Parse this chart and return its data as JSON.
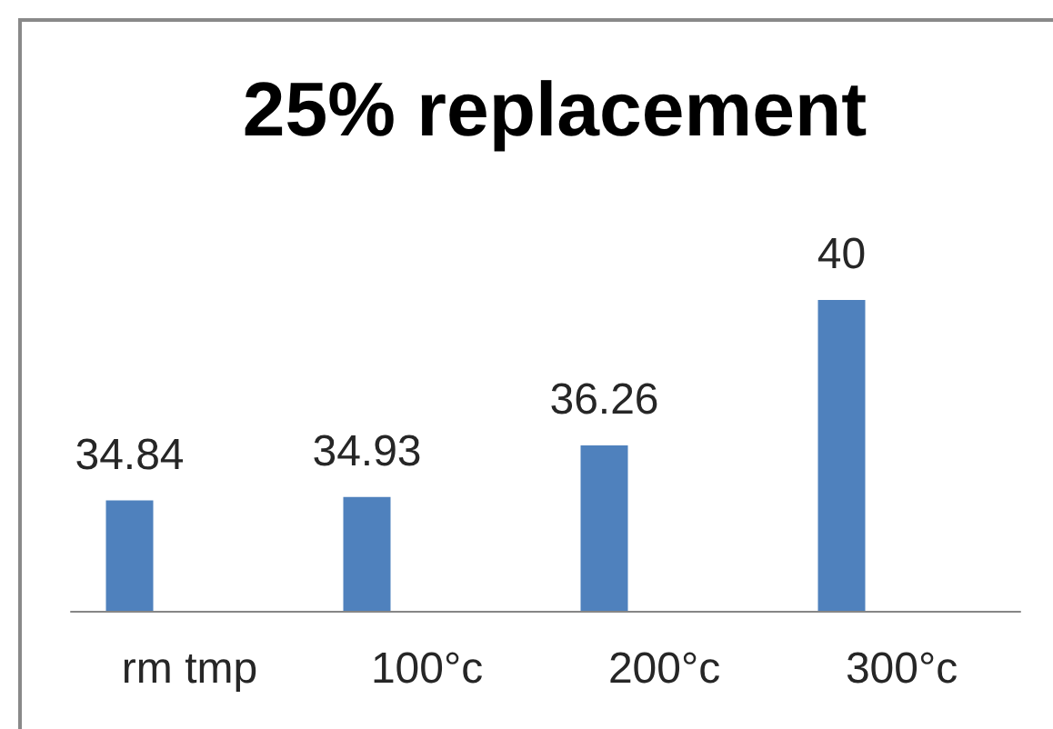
{
  "chart_data": {
    "type": "bar",
    "title": "25% replacement",
    "categories": [
      "rm tmp",
      "100°c",
      "200°c",
      "300°c"
    ],
    "values": [
      34.84,
      34.93,
      36.26,
      40
    ],
    "color": "#4f81bd",
    "ylim": [
      32,
      40
    ],
    "data_labels": true,
    "tick_labels": "x"
  }
}
